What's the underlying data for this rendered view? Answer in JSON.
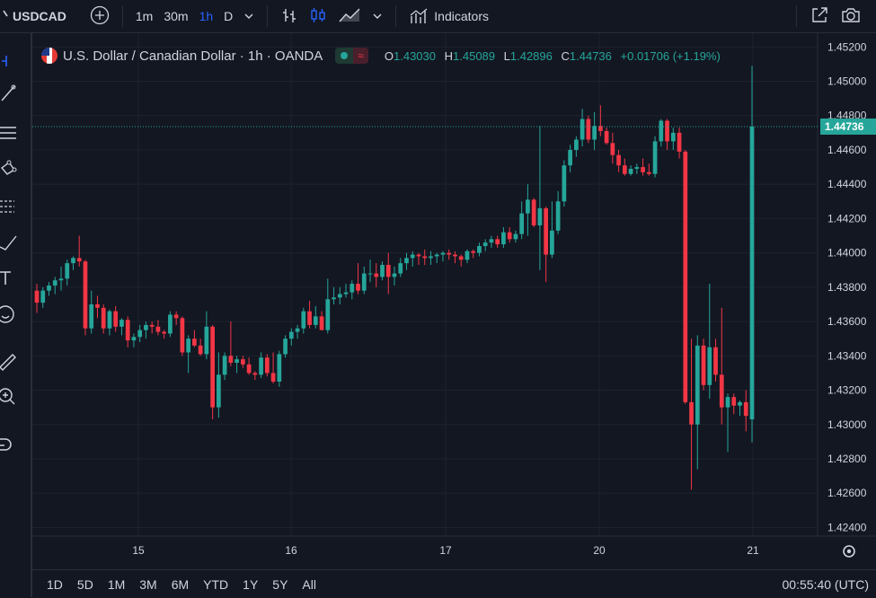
{
  "toolbar": {
    "symbol": "USDCAD",
    "intervals": [
      "1m",
      "30m",
      "1h",
      "D"
    ],
    "active_interval": "1h",
    "indicators_label": "Indicators"
  },
  "legend": {
    "title": "U.S. Dollar / Canadian Dollar · 1h · OANDA",
    "o_label": "O",
    "o_value": "1.43030",
    "h_label": "H",
    "h_value": "1.45089",
    "l_label": "L",
    "l_value": "1.42896",
    "c_label": "C",
    "c_value": "1.44736",
    "change": "+0.01706 (+1.19%)",
    "wave_symbol": "≈"
  },
  "ranges": [
    "1D",
    "5D",
    "1M",
    "3M",
    "6M",
    "YTD",
    "1Y",
    "5Y",
    "All"
  ],
  "clock": "00:55:40 (UTC)",
  "colors": {
    "up": "#26a69a",
    "down": "#f23645",
    "background": "#131722",
    "grid": "#1e222d",
    "accent": "#2962ff"
  },
  "icons": [
    "crosshair-icon",
    "trend-line-icon",
    "fib-icon",
    "pattern-icon",
    "forecast-icon",
    "brush-icon",
    "text-icon",
    "emoji-icon",
    "ruler-icon",
    "zoom-icon",
    "magnet-icon"
  ],
  "chart_data": {
    "type": "candlestick",
    "x_tick_labels": [
      "15",
      "16",
      "17",
      "20",
      "21"
    ],
    "y_ticks": [
      "1.45200",
      "1.45000",
      "1.44800",
      "1.44600",
      "1.44400",
      "1.44200",
      "1.44000",
      "1.43800",
      "1.43600",
      "1.43400",
      "1.43200",
      "1.43000",
      "1.42800",
      "1.42600",
      "1.42400"
    ],
    "ylim": [
      1.4235,
      1.4528
    ],
    "last_price": "1.44736",
    "candles": [
      {
        "o": 1.4378,
        "h": 1.4382,
        "l": 1.4365,
        "c": 1.4371
      },
      {
        "o": 1.4371,
        "h": 1.438,
        "l": 1.4368,
        "c": 1.4378
      },
      {
        "o": 1.4378,
        "h": 1.4383,
        "l": 1.4375,
        "c": 1.4381
      },
      {
        "o": 1.4381,
        "h": 1.4386,
        "l": 1.4376,
        "c": 1.4384
      },
      {
        "o": 1.4384,
        "h": 1.4392,
        "l": 1.4378,
        "c": 1.4385
      },
      {
        "o": 1.4385,
        "h": 1.4396,
        "l": 1.4381,
        "c": 1.4394
      },
      {
        "o": 1.4394,
        "h": 1.4398,
        "l": 1.439,
        "c": 1.4397
      },
      {
        "o": 1.4397,
        "h": 1.441,
        "l": 1.4392,
        "c": 1.4395
      },
      {
        "o": 1.4395,
        "h": 1.4396,
        "l": 1.4352,
        "c": 1.4356
      },
      {
        "o": 1.4356,
        "h": 1.4378,
        "l": 1.4353,
        "c": 1.437
      },
      {
        "o": 1.437,
        "h": 1.4375,
        "l": 1.4362,
        "c": 1.4368
      },
      {
        "o": 1.4368,
        "h": 1.437,
        "l": 1.4353,
        "c": 1.4356
      },
      {
        "o": 1.4356,
        "h": 1.4367,
        "l": 1.4352,
        "c": 1.4366
      },
      {
        "o": 1.4366,
        "h": 1.4369,
        "l": 1.4354,
        "c": 1.4357
      },
      {
        "o": 1.4357,
        "h": 1.4362,
        "l": 1.4352,
        "c": 1.4361
      },
      {
        "o": 1.4361,
        "h": 1.4363,
        "l": 1.4345,
        "c": 1.4349
      },
      {
        "o": 1.4349,
        "h": 1.4353,
        "l": 1.4345,
        "c": 1.4351
      },
      {
        "o": 1.4351,
        "h": 1.4358,
        "l": 1.4348,
        "c": 1.4355
      },
      {
        "o": 1.4355,
        "h": 1.436,
        "l": 1.435,
        "c": 1.4358
      },
      {
        "o": 1.4358,
        "h": 1.436,
        "l": 1.4353,
        "c": 1.4357
      },
      {
        "o": 1.4357,
        "h": 1.4361,
        "l": 1.4352,
        "c": 1.4354
      },
      {
        "o": 1.4354,
        "h": 1.4355,
        "l": 1.435,
        "c": 1.4353
      },
      {
        "o": 1.4353,
        "h": 1.4366,
        "l": 1.4351,
        "c": 1.4364
      },
      {
        "o": 1.4364,
        "h": 1.4366,
        "l": 1.4358,
        "c": 1.4362
      },
      {
        "o": 1.4362,
        "h": 1.4363,
        "l": 1.434,
        "c": 1.4342
      },
      {
        "o": 1.4342,
        "h": 1.4352,
        "l": 1.433,
        "c": 1.435
      },
      {
        "o": 1.435,
        "h": 1.4355,
        "l": 1.4345,
        "c": 1.4346
      },
      {
        "o": 1.4346,
        "h": 1.435,
        "l": 1.434,
        "c": 1.4341
      },
      {
        "o": 1.4341,
        "h": 1.4366,
        "l": 1.4338,
        "c": 1.4357
      },
      {
        "o": 1.4357,
        "h": 1.4358,
        "l": 1.4303,
        "c": 1.431
      },
      {
        "o": 1.431,
        "h": 1.4342,
        "l": 1.4304,
        "c": 1.4329
      },
      {
        "o": 1.4329,
        "h": 1.4342,
        "l": 1.4326,
        "c": 1.434
      },
      {
        "o": 1.434,
        "h": 1.436,
        "l": 1.4334,
        "c": 1.4336
      },
      {
        "o": 1.4336,
        "h": 1.434,
        "l": 1.433,
        "c": 1.4338
      },
      {
        "o": 1.4338,
        "h": 1.434,
        "l": 1.4333,
        "c": 1.4335
      },
      {
        "o": 1.4335,
        "h": 1.4339,
        "l": 1.4329,
        "c": 1.433
      },
      {
        "o": 1.433,
        "h": 1.4331,
        "l": 1.4326,
        "c": 1.4329
      },
      {
        "o": 1.4329,
        "h": 1.4342,
        "l": 1.4327,
        "c": 1.4339
      },
      {
        "o": 1.4339,
        "h": 1.4341,
        "l": 1.4328,
        "c": 1.433
      },
      {
        "o": 1.433,
        "h": 1.4342,
        "l": 1.4324,
        "c": 1.4325
      },
      {
        "o": 1.4325,
        "h": 1.4343,
        "l": 1.4322,
        "c": 1.4341
      },
      {
        "o": 1.4341,
        "h": 1.4352,
        "l": 1.4339,
        "c": 1.435
      },
      {
        "o": 1.435,
        "h": 1.4356,
        "l": 1.4346,
        "c": 1.4354
      },
      {
        "o": 1.4354,
        "h": 1.4358,
        "l": 1.435,
        "c": 1.4356
      },
      {
        "o": 1.4356,
        "h": 1.4368,
        "l": 1.4353,
        "c": 1.4366
      },
      {
        "o": 1.4366,
        "h": 1.4372,
        "l": 1.4356,
        "c": 1.4358
      },
      {
        "o": 1.4358,
        "h": 1.4369,
        "l": 1.4356,
        "c": 1.4363
      },
      {
        "o": 1.4363,
        "h": 1.4366,
        "l": 1.4355,
        "c": 1.4355
      },
      {
        "o": 1.4355,
        "h": 1.4385,
        "l": 1.4353,
        "c": 1.4373
      },
      {
        "o": 1.4373,
        "h": 1.438,
        "l": 1.437,
        "c": 1.4374
      },
      {
        "o": 1.4374,
        "h": 1.438,
        "l": 1.437,
        "c": 1.4376
      },
      {
        "o": 1.4376,
        "h": 1.4382,
        "l": 1.4374,
        "c": 1.4377
      },
      {
        "o": 1.4377,
        "h": 1.4384,
        "l": 1.4373,
        "c": 1.4382
      },
      {
        "o": 1.4382,
        "h": 1.4394,
        "l": 1.4376,
        "c": 1.4378
      },
      {
        "o": 1.4378,
        "h": 1.4392,
        "l": 1.4376,
        "c": 1.4388
      },
      {
        "o": 1.4388,
        "h": 1.4396,
        "l": 1.4383,
        "c": 1.4388
      },
      {
        "o": 1.4388,
        "h": 1.4394,
        "l": 1.438,
        "c": 1.4386
      },
      {
        "o": 1.4386,
        "h": 1.4395,
        "l": 1.4384,
        "c": 1.4393
      },
      {
        "o": 1.4393,
        "h": 1.44,
        "l": 1.4376,
        "c": 1.4386
      },
      {
        "o": 1.4386,
        "h": 1.4392,
        "l": 1.4381,
        "c": 1.4388
      },
      {
        "o": 1.4388,
        "h": 1.4397,
        "l": 1.4386,
        "c": 1.4394
      },
      {
        "o": 1.4394,
        "h": 1.44,
        "l": 1.439,
        "c": 1.4397
      },
      {
        "o": 1.4397,
        "h": 1.4401,
        "l": 1.4392,
        "c": 1.4399
      },
      {
        "o": 1.4399,
        "h": 1.44,
        "l": 1.4393,
        "c": 1.4398
      },
      {
        "o": 1.4398,
        "h": 1.4402,
        "l": 1.4393,
        "c": 1.4397
      },
      {
        "o": 1.4397,
        "h": 1.4401,
        "l": 1.4393,
        "c": 1.4398
      },
      {
        "o": 1.4398,
        "h": 1.44,
        "l": 1.4394,
        "c": 1.4399
      },
      {
        "o": 1.4399,
        "h": 1.4401,
        "l": 1.4395,
        "c": 1.44
      },
      {
        "o": 1.44,
        "h": 1.4402,
        "l": 1.4396,
        "c": 1.4399
      },
      {
        "o": 1.4399,
        "h": 1.4401,
        "l": 1.4394,
        "c": 1.4398
      },
      {
        "o": 1.4398,
        "h": 1.4399,
        "l": 1.4392,
        "c": 1.4396
      },
      {
        "o": 1.4396,
        "h": 1.4402,
        "l": 1.4394,
        "c": 1.4401
      },
      {
        "o": 1.4401,
        "h": 1.4402,
        "l": 1.4397,
        "c": 1.44
      },
      {
        "o": 1.44,
        "h": 1.4406,
        "l": 1.4398,
        "c": 1.4404
      },
      {
        "o": 1.4404,
        "h": 1.4408,
        "l": 1.4401,
        "c": 1.4406
      },
      {
        "o": 1.4406,
        "h": 1.441,
        "l": 1.4403,
        "c": 1.4408
      },
      {
        "o": 1.4408,
        "h": 1.441,
        "l": 1.4403,
        "c": 1.4405
      },
      {
        "o": 1.4405,
        "h": 1.4415,
        "l": 1.4403,
        "c": 1.4412
      },
      {
        "o": 1.4412,
        "h": 1.4415,
        "l": 1.4406,
        "c": 1.4408
      },
      {
        "o": 1.4408,
        "h": 1.4413,
        "l": 1.4406,
        "c": 1.4411
      },
      {
        "o": 1.4411,
        "h": 1.443,
        "l": 1.4408,
        "c": 1.4423
      },
      {
        "o": 1.4423,
        "h": 1.444,
        "l": 1.441,
        "c": 1.4431
      },
      {
        "o": 1.4431,
        "h": 1.4432,
        "l": 1.4415,
        "c": 1.4416
      },
      {
        "o": 1.4416,
        "h": 1.4474,
        "l": 1.439,
        "c": 1.4426
      },
      {
        "o": 1.4426,
        "h": 1.4427,
        "l": 1.4383,
        "c": 1.4399
      },
      {
        "o": 1.4399,
        "h": 1.443,
        "l": 1.4397,
        "c": 1.4413
      },
      {
        "o": 1.4413,
        "h": 1.4436,
        "l": 1.4411,
        "c": 1.443
      },
      {
        "o": 1.443,
        "h": 1.4454,
        "l": 1.4427,
        "c": 1.4451
      },
      {
        "o": 1.4451,
        "h": 1.4463,
        "l": 1.4447,
        "c": 1.446
      },
      {
        "o": 1.446,
        "h": 1.4468,
        "l": 1.4456,
        "c": 1.4466
      },
      {
        "o": 1.4466,
        "h": 1.4484,
        "l": 1.4462,
        "c": 1.4478
      },
      {
        "o": 1.4478,
        "h": 1.448,
        "l": 1.4464,
        "c": 1.4466
      },
      {
        "o": 1.4466,
        "h": 1.4482,
        "l": 1.446,
        "c": 1.4474
      },
      {
        "o": 1.4474,
        "h": 1.4486,
        "l": 1.4468,
        "c": 1.4471
      },
      {
        "o": 1.4471,
        "h": 1.4473,
        "l": 1.4463,
        "c": 1.4464
      },
      {
        "o": 1.4464,
        "h": 1.447,
        "l": 1.4452,
        "c": 1.4457
      },
      {
        "o": 1.4457,
        "h": 1.446,
        "l": 1.4447,
        "c": 1.4451
      },
      {
        "o": 1.4451,
        "h": 1.4455,
        "l": 1.4445,
        "c": 1.4446
      },
      {
        "o": 1.4446,
        "h": 1.4451,
        "l": 1.4445,
        "c": 1.4449
      },
      {
        "o": 1.4449,
        "h": 1.4452,
        "l": 1.4446,
        "c": 1.445
      },
      {
        "o": 1.445,
        "h": 1.4455,
        "l": 1.4445,
        "c": 1.4447
      },
      {
        "o": 1.4447,
        "h": 1.4452,
        "l": 1.4445,
        "c": 1.4446
      },
      {
        "o": 1.4446,
        "h": 1.4468,
        "l": 1.4444,
        "c": 1.4465
      },
      {
        "o": 1.4465,
        "h": 1.4478,
        "l": 1.4462,
        "c": 1.4477
      },
      {
        "o": 1.4477,
        "h": 1.4478,
        "l": 1.446,
        "c": 1.4465
      },
      {
        "o": 1.4465,
        "h": 1.4473,
        "l": 1.446,
        "c": 1.447
      },
      {
        "o": 1.447,
        "h": 1.4473,
        "l": 1.4455,
        "c": 1.4459
      },
      {
        "o": 1.4459,
        "h": 1.446,
        "l": 1.4312,
        "c": 1.4313
      },
      {
        "o": 1.4313,
        "h": 1.435,
        "l": 1.4262,
        "c": 1.43
      },
      {
        "o": 1.43,
        "h": 1.4352,
        "l": 1.4274,
        "c": 1.4346
      },
      {
        "o": 1.4346,
        "h": 1.435,
        "l": 1.432,
        "c": 1.4323
      },
      {
        "o": 1.4323,
        "h": 1.4382,
        "l": 1.4315,
        "c": 1.4345
      },
      {
        "o": 1.4345,
        "h": 1.435,
        "l": 1.4325,
        "c": 1.4329
      },
      {
        "o": 1.4329,
        "h": 1.4368,
        "l": 1.43,
        "c": 1.431
      },
      {
        "o": 1.431,
        "h": 1.4318,
        "l": 1.4284,
        "c": 1.4316
      },
      {
        "o": 1.4316,
        "h": 1.4318,
        "l": 1.4306,
        "c": 1.4311
      },
      {
        "o": 1.4311,
        "h": 1.4314,
        "l": 1.4305,
        "c": 1.4313
      },
      {
        "o": 1.4313,
        "h": 1.432,
        "l": 1.4296,
        "c": 1.4305
      },
      {
        "o": 1.4303,
        "h": 1.45089,
        "l": 1.42896,
        "c": 1.44736
      }
    ]
  }
}
